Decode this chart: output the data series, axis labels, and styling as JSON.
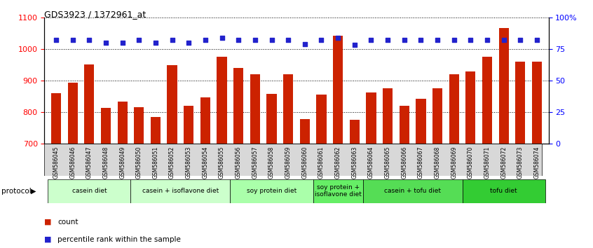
{
  "title": "GDS3923 / 1372961_at",
  "samples": [
    "GSM586045",
    "GSM586046",
    "GSM586047",
    "GSM586048",
    "GSM586049",
    "GSM586050",
    "GSM586051",
    "GSM586052",
    "GSM586053",
    "GSM586054",
    "GSM586055",
    "GSM586056",
    "GSM586057",
    "GSM586058",
    "GSM586059",
    "GSM586060",
    "GSM586061",
    "GSM586062",
    "GSM586063",
    "GSM586064",
    "GSM586065",
    "GSM586066",
    "GSM586067",
    "GSM586068",
    "GSM586069",
    "GSM586070",
    "GSM586071",
    "GSM586072",
    "GSM586073",
    "GSM586074"
  ],
  "bar_values": [
    860,
    893,
    951,
    813,
    834,
    815,
    785,
    948,
    820,
    848,
    975,
    940,
    920,
    857,
    921,
    778,
    855,
    1042,
    775,
    862,
    875,
    820,
    843,
    875,
    921,
    930,
    975,
    1067,
    959,
    960
  ],
  "percentile_values": [
    82,
    82,
    82,
    80,
    80,
    82,
    80,
    82,
    80,
    82,
    84,
    82,
    82,
    82,
    82,
    79,
    82,
    84,
    78,
    82,
    82,
    82,
    82,
    82,
    82,
    82,
    82,
    82,
    82,
    82
  ],
  "bar_color": "#cc2200",
  "dot_color": "#2222cc",
  "ylim_left": [
    700,
    1100
  ],
  "ylim_right": [
    0,
    100
  ],
  "yticks_left": [
    700,
    800,
    900,
    1000,
    1100
  ],
  "yticks_right": [
    0,
    25,
    50,
    75,
    100
  ],
  "yticklabels_right": [
    "0",
    "25",
    "50",
    "75",
    "100%"
  ],
  "groups": [
    {
      "label": "casein diet",
      "start": 0,
      "end": 4,
      "color": "#ccffcc"
    },
    {
      "label": "casein + isoflavone diet",
      "start": 5,
      "end": 10,
      "color": "#ccffcc"
    },
    {
      "label": "soy protein diet",
      "start": 11,
      "end": 15,
      "color": "#aaffaa"
    },
    {
      "label": "soy protein +\nisoflavone diet",
      "start": 16,
      "end": 18,
      "color": "#66ee66"
    },
    {
      "label": "casein + tofu diet",
      "start": 19,
      "end": 24,
      "color": "#55dd55"
    },
    {
      "label": "tofu diet",
      "start": 25,
      "end": 29,
      "color": "#33cc33"
    }
  ],
  "protocol_label": "protocol",
  "legend_count_label": "count",
  "legend_pct_label": "percentile rank within the sample",
  "background_color": "#ffffff"
}
